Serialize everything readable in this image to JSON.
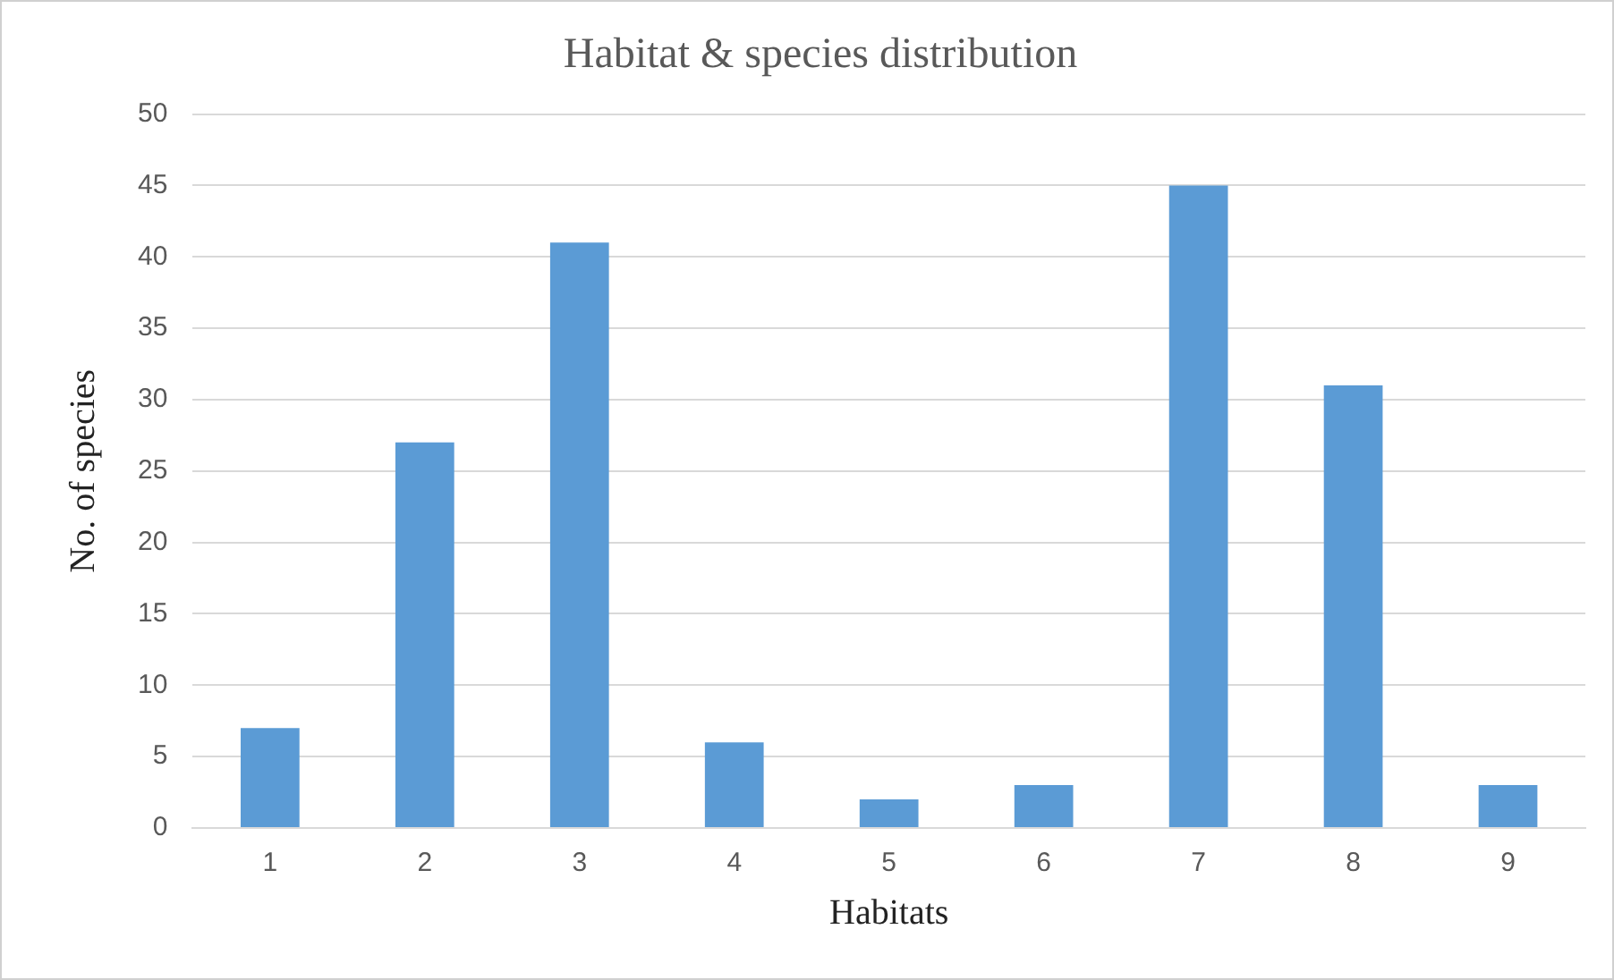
{
  "chart_data": {
    "type": "bar",
    "title": "Habitat & species distribution",
    "xlabel": "Habitats",
    "ylabel": "No. of species",
    "categories": [
      "1",
      "2",
      "3",
      "4",
      "5",
      "6",
      "7",
      "8",
      "9"
    ],
    "values": [
      7,
      27,
      41,
      6,
      2,
      3,
      45,
      31,
      3
    ],
    "color": "#5b9bd5",
    "ylim": [
      0,
      50
    ],
    "yticks": [
      0,
      5,
      10,
      15,
      20,
      25,
      30,
      35,
      40,
      45,
      50
    ],
    "grid": "y",
    "legend": false
  }
}
